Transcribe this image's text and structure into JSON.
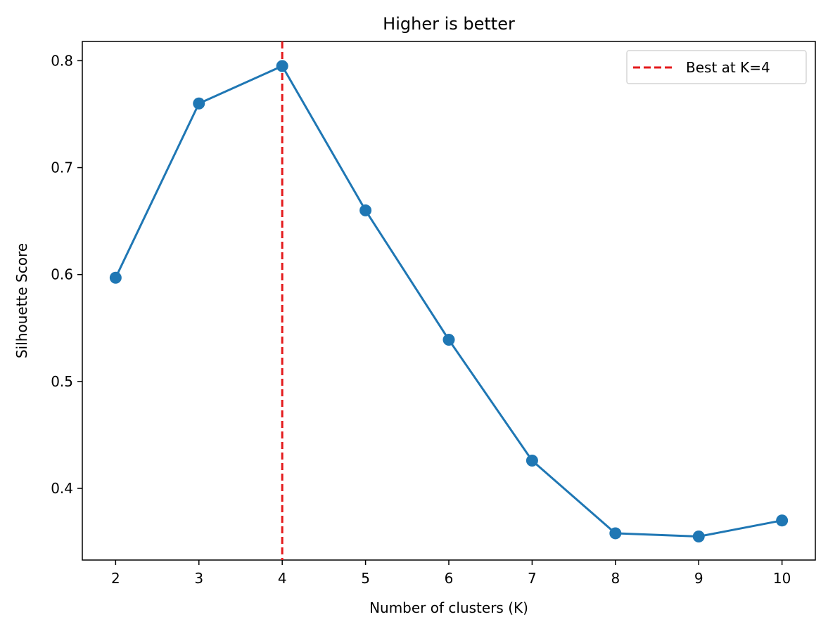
{
  "chart_data": {
    "type": "line",
    "title": "Higher is better",
    "xlabel": "Number of clusters (K)",
    "ylabel": "Silhouette Score",
    "x": [
      2,
      3,
      4,
      5,
      6,
      7,
      8,
      9,
      10
    ],
    "xticks": [
      "2",
      "3",
      "4",
      "5",
      "6",
      "7",
      "8",
      "9",
      "10"
    ],
    "yticks": [
      0.4,
      0.5,
      0.6,
      0.7,
      0.8
    ],
    "ytick_labels": [
      "0.4",
      "0.5",
      "0.6",
      "0.7",
      "0.8"
    ],
    "xlim": [
      1.6,
      10.4
    ],
    "ylim": [
      0.333,
      0.818
    ],
    "series": [
      {
        "values": [
          0.597,
          0.76,
          0.795,
          0.66,
          0.539,
          0.426,
          0.358,
          0.355,
          0.37
        ],
        "color": "#1f77b4",
        "marker": "circle"
      }
    ],
    "reference_line": {
      "orientation": "vertical",
      "x": 4,
      "label": "Best at K=4",
      "color": "#e41a1c",
      "style": "dashed"
    },
    "legend": {
      "placement": "top-right",
      "entries": [
        "Best at K=4"
      ]
    },
    "grid": false
  }
}
